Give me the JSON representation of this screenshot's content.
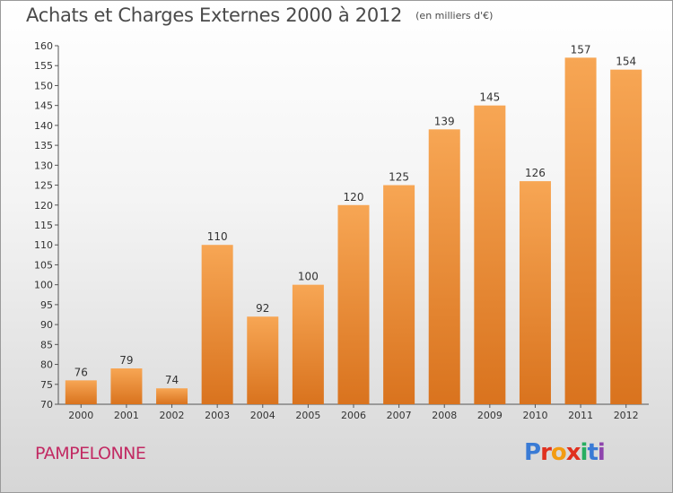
{
  "header": {
    "title": "Achats et Charges Externes 2000 à 2012",
    "subtitle": "(en milliers d'€)"
  },
  "footer": {
    "commune": "PAMPELONNE",
    "logo": "Proxiti"
  },
  "colors": {
    "bar_light": "#f7a654",
    "bar_dark": "#d9731e",
    "commune_text": "#c22a63",
    "logo_letters": [
      "#3a7bd5",
      "#e0301e",
      "#f39c12",
      "#e0301e",
      "#27ae60",
      "#3a7bd5",
      "#8e44ad"
    ]
  },
  "chart_data": {
    "type": "bar",
    "title": "Achats et Charges Externes 2000 à 2012",
    "subtitle": "(en milliers d'€)",
    "xlabel": "",
    "ylabel": "",
    "categories": [
      "2000",
      "2001",
      "2002",
      "2003",
      "2004",
      "2005",
      "2006",
      "2007",
      "2008",
      "2009",
      "2010",
      "2011",
      "2012"
    ],
    "values": [
      76,
      79,
      74,
      110,
      92,
      100,
      120,
      125,
      139,
      145,
      126,
      157,
      154
    ],
    "ylim": [
      70,
      160
    ],
    "yticks": [
      70,
      75,
      80,
      85,
      90,
      95,
      100,
      105,
      110,
      115,
      120,
      125,
      130,
      135,
      140,
      145,
      150,
      155,
      160
    ],
    "grid": false,
    "legend": "none"
  }
}
